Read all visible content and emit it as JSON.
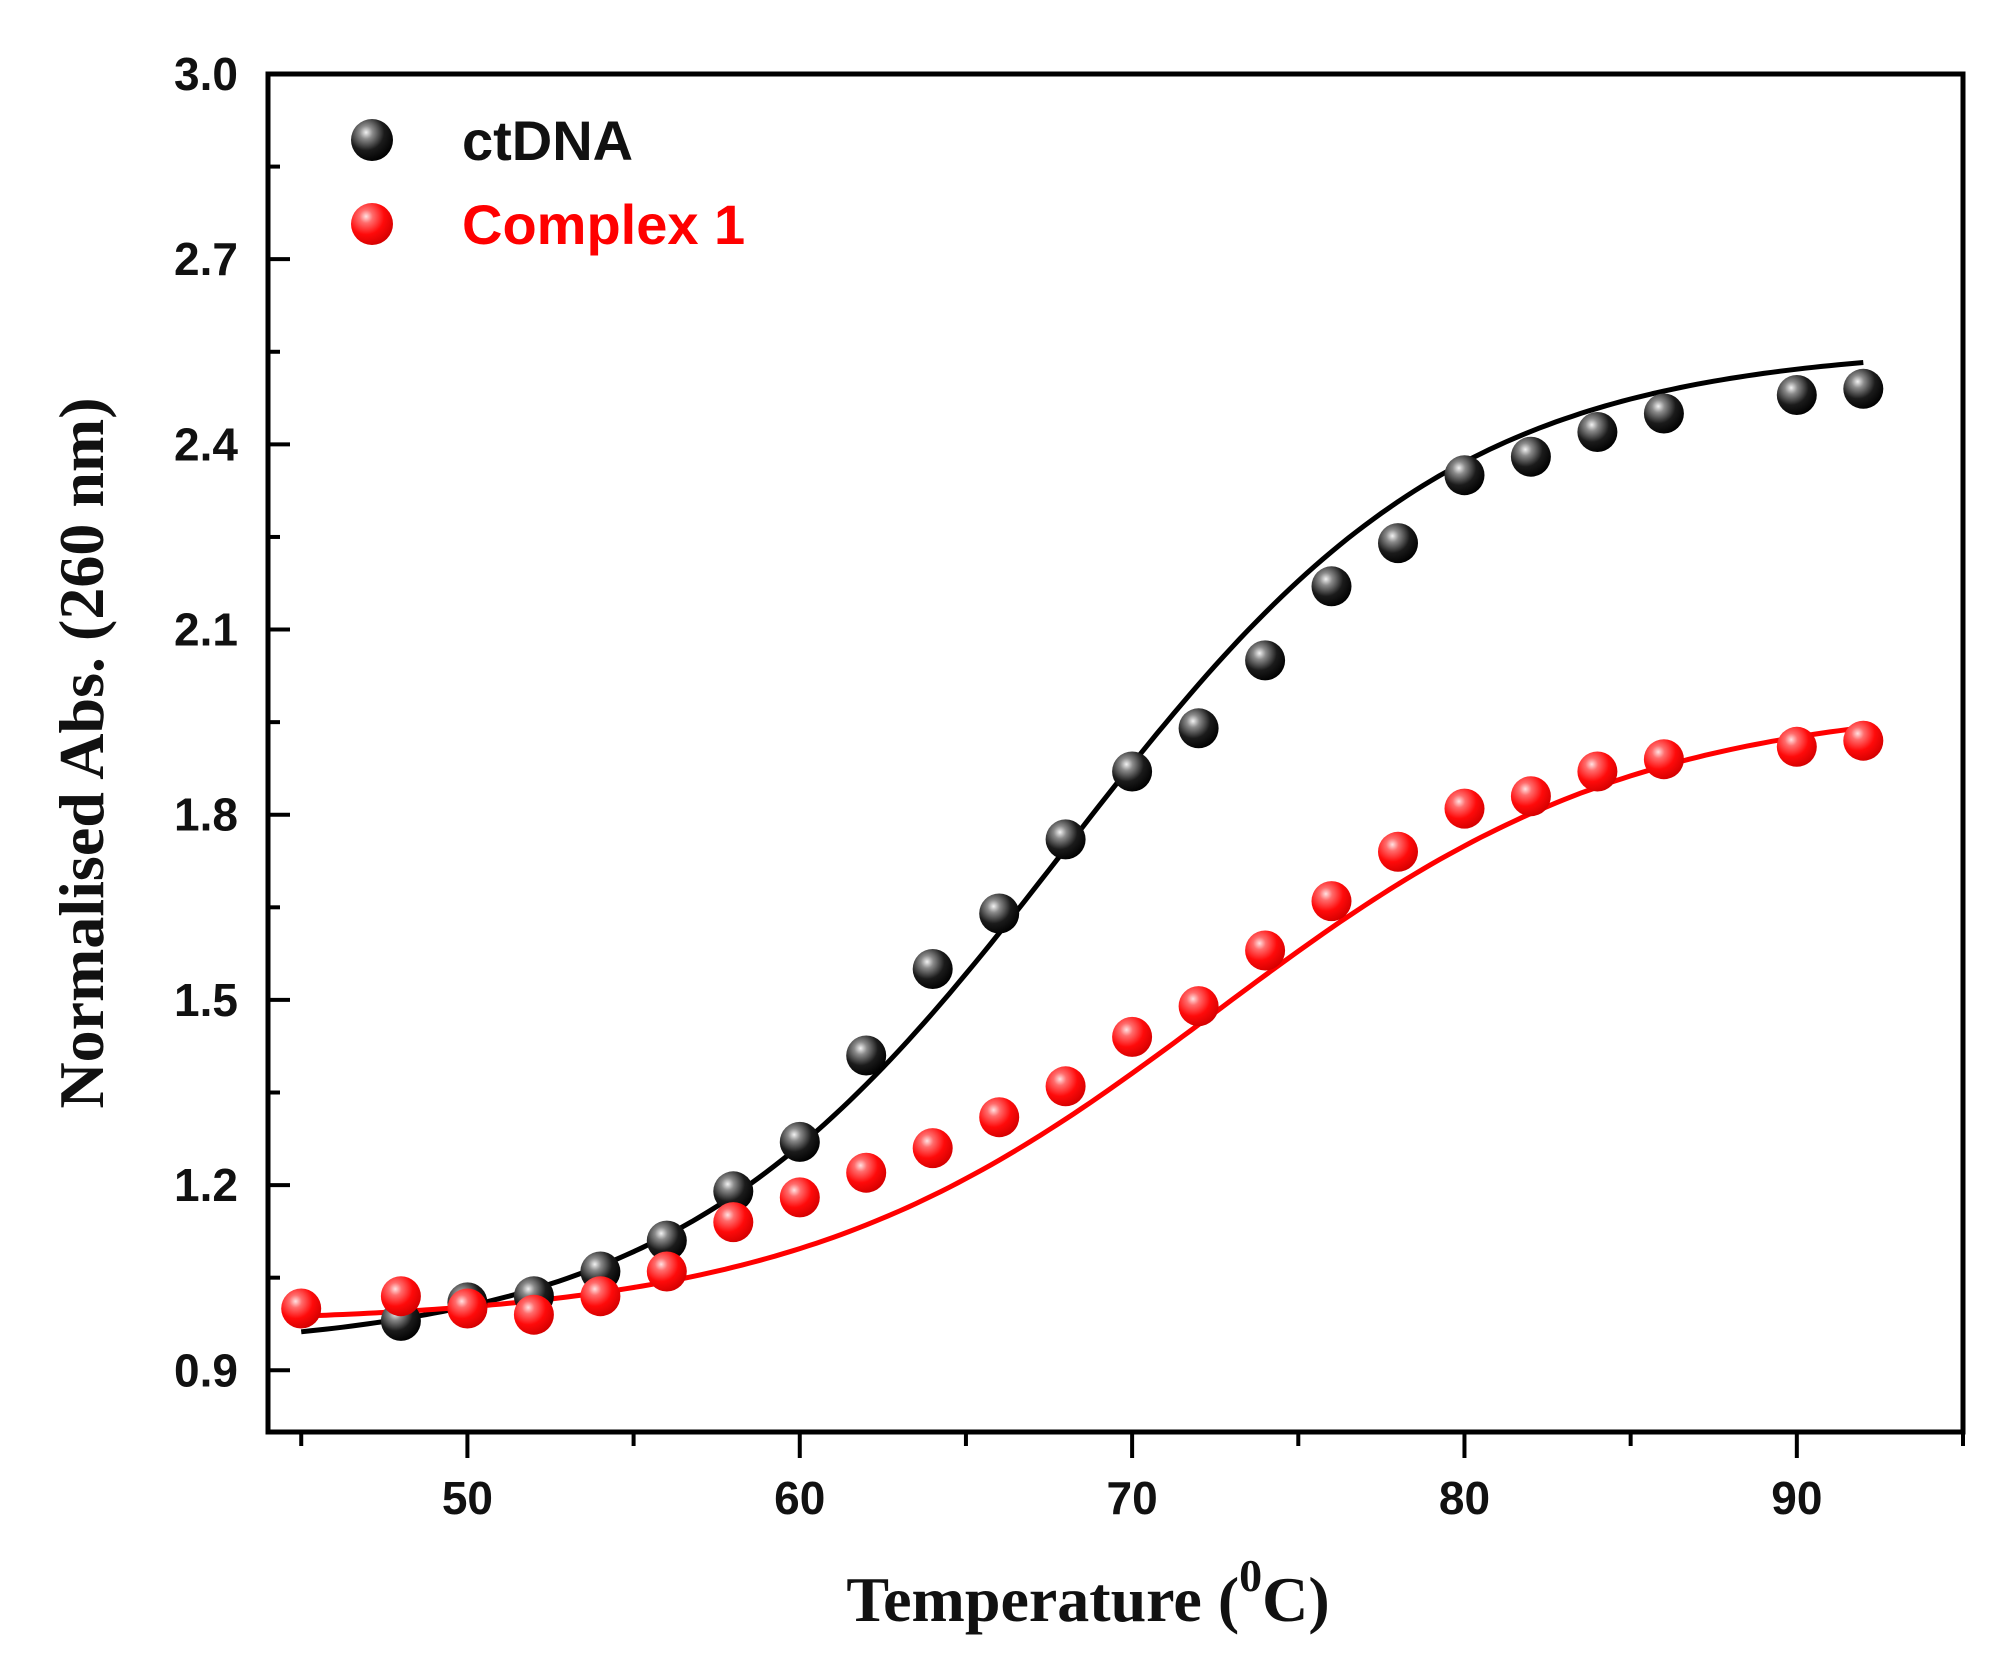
{
  "chart_data": {
    "type": "scatter",
    "title": "",
    "xlabel": "Temperature (",
    "xlabel_sup": "0",
    "xlabel_unit": "C)",
    "ylabel": "Normalised Abs. (260 nm)",
    "xlim": [
      44,
      95
    ],
    "ylim": [
      0.8,
      3.0
    ],
    "xticks": [
      50,
      60,
      70,
      80,
      90
    ],
    "yticks": [
      0.9,
      1.2,
      1.5,
      1.8,
      2.1,
      2.4,
      2.7,
      3.0
    ],
    "ytick_labels": [
      "0.9",
      "1.2",
      "1.5",
      "1.8",
      "2.1",
      "2.4",
      "2.7",
      "3.0"
    ],
    "legend_position": "top-left",
    "series": [
      {
        "name": "ctDNA",
        "color": "#000000",
        "x": [
          48,
          50,
          52,
          54,
          56,
          58,
          60,
          62,
          64,
          66,
          68,
          70,
          72,
          74,
          76,
          78,
          80,
          82,
          84,
          86,
          90,
          92
        ],
        "y": [
          0.98,
          1.01,
          1.02,
          1.06,
          1.11,
          1.19,
          1.27,
          1.41,
          1.55,
          1.64,
          1.76,
          1.87,
          1.94,
          2.05,
          2.17,
          2.24,
          2.35,
          2.38,
          2.42,
          2.45,
          2.48,
          2.49
        ],
        "fit": {
          "model": "sigmoid",
          "x_start": 45,
          "x_end": 92,
          "base": 0.93,
          "top": 2.56,
          "midpoint": 68,
          "slope": 5.9
        }
      },
      {
        "name": "Complex 1",
        "color": "#ff0000",
        "x": [
          45,
          48,
          50,
          52,
          54,
          56,
          58,
          60,
          62,
          64,
          66,
          68,
          70,
          72,
          74,
          76,
          78,
          80,
          82,
          84,
          86,
          90,
          92
        ],
        "y": [
          1.0,
          1.02,
          1.0,
          0.99,
          1.02,
          1.06,
          1.14,
          1.18,
          1.22,
          1.26,
          1.31,
          1.36,
          1.44,
          1.49,
          1.58,
          1.66,
          1.74,
          1.81,
          1.83,
          1.87,
          1.89,
          1.91,
          1.92
        ],
        "fit": {
          "model": "sigmoid",
          "x_start": 45,
          "x_end": 92,
          "base": 0.975,
          "top": 1.985,
          "midpoint": 72.5,
          "slope": 6.3
        }
      }
    ]
  }
}
